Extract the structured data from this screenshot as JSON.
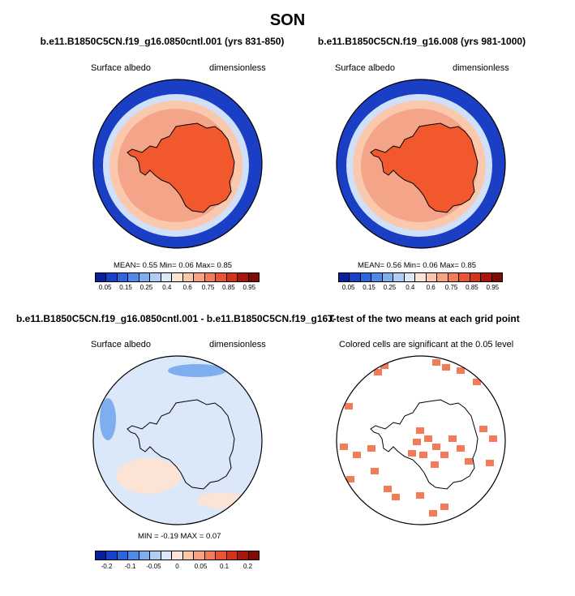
{
  "figure": {
    "title": "SON"
  },
  "panels": [
    {
      "id": "p1",
      "title": "b.e11.B1850C5CN.f19_g16.0850cntl.001 (yrs 831-850)",
      "left_label": "Surface albedo",
      "right_label": "dimensionless",
      "stats": "MEAN=  0.55  Min=  0.06  Max=  0.85"
    },
    {
      "id": "p2",
      "title": "b.e11.B1850C5CN.f19_g16.008 (yrs 981-1000)",
      "left_label": "Surface albedo",
      "right_label": "dimensionless",
      "stats": "MEAN=  0.56  Min=  0.06  Max=  0.85"
    },
    {
      "id": "p3",
      "title": "b.e11.B1850C5CN.f19_g16.0850cntl.001 - b.e11.B1850C5CN.f19_g16.008",
      "left_label": "Surface albedo",
      "right_label": "dimensionless",
      "stats": "MIN =  -0.19 MAX =  0.07"
    },
    {
      "id": "p4",
      "title": "T-test of the two means at each grid point",
      "subtitle": "Colored cells are significant at the 0.05 level"
    }
  ],
  "colorbars": {
    "albedo": {
      "colors": [
        "#0a1f9c",
        "#1741c8",
        "#2a66e0",
        "#4f8ae8",
        "#7eaef0",
        "#b0cdf5",
        "#dbe8fa",
        "#fbe4d6",
        "#fcc6ab",
        "#f9a27f",
        "#f47b57",
        "#ea5432",
        "#d23518",
        "#a8170b",
        "#7f0b04"
      ],
      "labels": [
        "0.05",
        "0.15",
        "0.25",
        "0.4",
        "0.6",
        "0.75",
        "0.85",
        "0.95"
      ]
    },
    "diff": {
      "colors": [
        "#0a1f9c",
        "#1741c8",
        "#2a66e0",
        "#4f8ae8",
        "#7eaef0",
        "#b0cdf5",
        "#dbe8fa",
        "#fbe4d6",
        "#fcc6ab",
        "#f9a27f",
        "#f47b57",
        "#ea5432",
        "#d23518",
        "#a8170b",
        "#7f0b04"
      ],
      "labels": [
        "-0.2",
        "-0.1",
        "-0.05",
        "0",
        "0.05",
        "0.1",
        "0.2"
      ]
    }
  },
  "map_colors": {
    "ocean_outer": "#1a3fc4",
    "ocean_mid": "#cfe0f8",
    "seaice_edge": "#f9c8ad",
    "seaice": "#f4a488",
    "land": "#f2582d",
    "diff_bg": "#dbe8fa",
    "diff_pos": "#fbe4d6",
    "diff_neg": "#7eaef0",
    "signif": "#f47b57"
  }
}
